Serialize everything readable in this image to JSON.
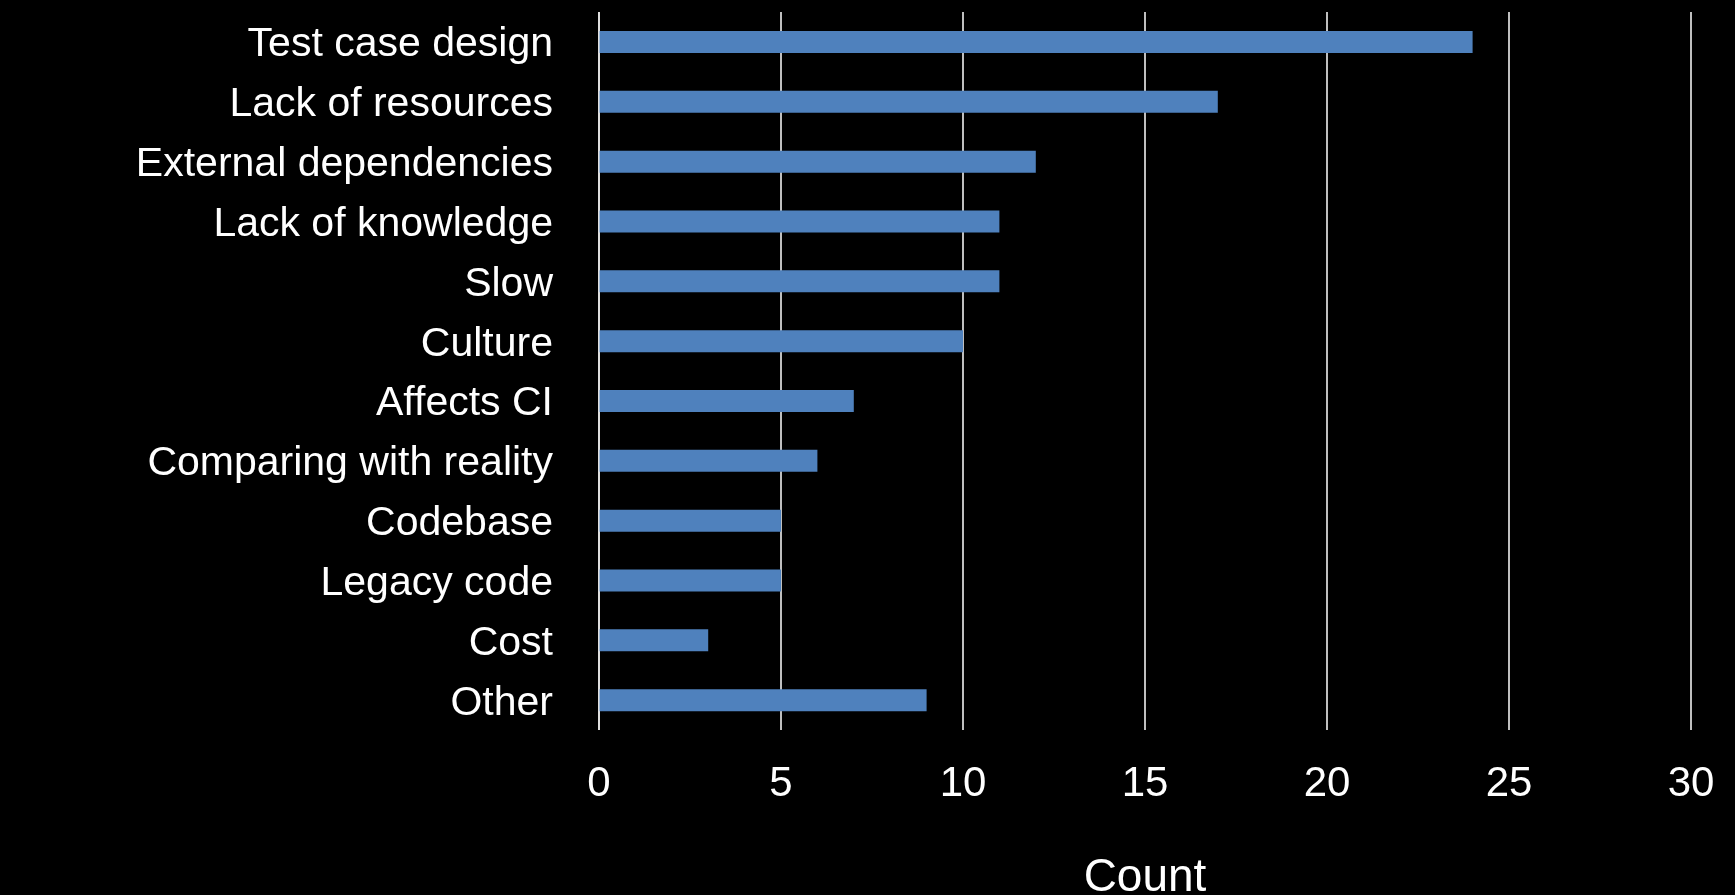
{
  "chart_data": {
    "type": "bar",
    "orientation": "horizontal",
    "xlabel": "Count",
    "categories": [
      "Test case design",
      "Lack of resources",
      "External dependencies",
      "Lack of knowledge",
      "Slow",
      "Culture",
      "Affects CI",
      "Comparing with reality",
      "Codebase",
      "Legacy code",
      "Cost",
      "Other"
    ],
    "values": [
      24,
      17,
      12,
      11,
      11,
      10,
      7,
      6,
      5,
      5,
      3,
      9
    ],
    "color": "#4f81bd",
    "xlim": [
      0,
      30
    ],
    "xticks": [
      0,
      5,
      10,
      15,
      20,
      25,
      30
    ],
    "grid": "x"
  }
}
